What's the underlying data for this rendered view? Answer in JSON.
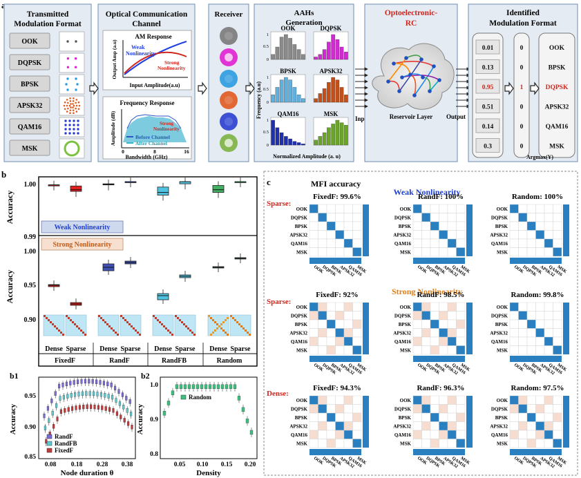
{
  "panel_a": {
    "label": "a",
    "tx": {
      "title1": "Transmitted",
      "title2": "Modulation Format",
      "formats": [
        "OOK",
        "DQPSK",
        "BPSK",
        "APSK32",
        "QAM16",
        "MSK"
      ]
    },
    "channel": {
      "title1": "Optical Communication",
      "title2": "Channel",
      "am_title": "AM Response",
      "am_ylabel": "Output Amp (a.u)",
      "am_xlabel": "Input Amplitude(a.u)",
      "weak1": "Weak",
      "weak2": "Nonlinearity",
      "strong1": "Strong",
      "strong2": "Nonlinearity",
      "fr_title": "Frequency Response",
      "fr_ylabel": "Amplitude (dB)",
      "fr_xlabel": "Bandwidth (GHz)",
      "fr_x0": "0",
      "fr_x1": "8",
      "fr_x2": "16",
      "before": "Before Channel",
      "after": "After Channel",
      "strong_fr1": "Strong",
      "strong_fr2": "Nonlinearity"
    },
    "receiver": {
      "title": "Receiver"
    },
    "aah": {
      "title1": "AAHs",
      "title2": "Generation",
      "ylabel": "Frequency (a.u)",
      "xlabel": "Normalized Amplitude (a. u)",
      "labels": [
        "OOK",
        "DQPSK",
        "BPSK",
        "APSK32",
        "QAM16",
        "MSK"
      ],
      "t1": "1",
      "t05": "0.5",
      "t0": "0",
      "input": "Input"
    },
    "rc": {
      "title1": "Optoelectronic-",
      "title2": "RC",
      "layer": "Reservoir Layer",
      "output": "Output"
    },
    "ident": {
      "title1": "Identified",
      "title2": "Modulation Format",
      "scores": [
        "0.01",
        "0.13",
        "0.95",
        "0.51",
        "0.14",
        "0.3"
      ],
      "argmax": [
        "0",
        "0",
        "1",
        "0",
        "0",
        "0"
      ],
      "formats": [
        "OOK",
        "BPSK",
        "DQPSK",
        "APSK32",
        "QAM16",
        "MSK"
      ],
      "argmax_label": "Argmax(Y)"
    }
  },
  "panel_b": {
    "label": "b",
    "ylabel": "Accuracy",
    "weak_label": "Weak Nonlinearity",
    "strong_label": "Strong Nonlinearity",
    "top_ticks": [
      "1.00",
      "0.99"
    ],
    "bottom_ticks": [
      "1.00",
      "0.95",
      "0.90"
    ],
    "sub_labels": [
      "Dense",
      "Sparse",
      "Dense",
      "Sparse",
      "Dense",
      "Sparse",
      "Dense",
      "Sparse"
    ],
    "groups": [
      "FixedF",
      "RandF",
      "RandFB",
      "Random"
    ]
  },
  "panel_b1": {
    "label": "b1",
    "ylabel": "Accuracy",
    "xlabel": "Node duration θ",
    "yticks": [
      "0.95",
      "0.90",
      "0.85"
    ],
    "xticks": [
      "0.08",
      "0.18",
      "0.28",
      "0.38"
    ],
    "legend": [
      "RandF",
      "RandFB",
      "FixedF"
    ]
  },
  "panel_b2": {
    "label": "b2",
    "ylabel": "Accuracy",
    "xlabel": "Density",
    "yticks": [
      "1.0",
      "0.9",
      "0.8"
    ],
    "xticks": [
      "0.05",
      "0.10",
      "0.15",
      "0.20"
    ],
    "legend": "Random"
  },
  "panel_c": {
    "label": "c",
    "title": "MFI accuracy",
    "weak": "Weak Nonlinearity",
    "strong": "Strong Nonlinearity",
    "sparse": "Sparse:",
    "dense": "Dense:",
    "row_labels": [
      "OOK",
      "DQPSK",
      "BPSK",
      "APSK32",
      "QAM16",
      "MSK"
    ],
    "matrices": [
      {
        "title": "FixedF: 99.6%"
      },
      {
        "title": "RandF: 100%"
      },
      {
        "title": "Random: 100%"
      },
      {
        "title": "FixedF: 92%"
      },
      {
        "title": "RandF: 98.5%"
      },
      {
        "title": "Random: 99.8%"
      },
      {
        "title": "FixedF: 94.3%"
      },
      {
        "title": "RandF: 96.3%"
      },
      {
        "title": "Random: 97.5%"
      }
    ]
  },
  "colors": {
    "blue": "#1f5fd6",
    "red": "#d0261c",
    "orange": "#d9801d",
    "cm": "#2a7fc0"
  },
  "chart_data": [
    {
      "type": "box",
      "title": "Weak Nonlinearity",
      "ylabel": "Accuracy",
      "ylim": [
        0.99,
        1.0
      ],
      "categories": [
        "FixedF Dense",
        "FixedF Sparse",
        "RandF Dense",
        "RandF Sparse",
        "RandFB Dense",
        "RandFB Sparse",
        "Random Dense",
        "Random Sparse"
      ],
      "series": [
        {
          "name": "median",
          "values": [
            0.9994,
            0.9985,
            0.9995,
            1.0,
            0.998,
            1.0,
            0.9985,
            1.0
          ]
        },
        {
          "name": "q1",
          "values": [
            0.9994,
            0.9982,
            0.9994,
            1.0,
            0.9975,
            0.9996,
            0.998,
            1.0
          ]
        },
        {
          "name": "q3",
          "values": [
            0.9994,
            0.9992,
            0.9996,
            1.0,
            0.999,
            1.0,
            0.9993,
            1.0
          ]
        }
      ]
    },
    {
      "type": "box",
      "title": "Strong Nonlinearity",
      "ylabel": "Accuracy",
      "ylim": [
        0.88,
        1.0
      ],
      "categories": [
        "FixedF Dense",
        "FixedF Sparse",
        "RandF Dense",
        "RandF Sparse",
        "RandFB Dense",
        "RandFB Sparse",
        "Random Dense",
        "Random Sparse"
      ],
      "series": [
        {
          "name": "median",
          "values": [
            0.949,
            0.922,
            0.975,
            0.982,
            0.934,
            0.962,
            0.975,
            0.988
          ]
        },
        {
          "name": "q1",
          "values": [
            0.947,
            0.92,
            0.97,
            0.98,
            0.928,
            0.96,
            0.974,
            0.987
          ]
        },
        {
          "name": "q3",
          "values": [
            0.95,
            0.924,
            0.98,
            0.984,
            0.937,
            0.964,
            0.976,
            0.989
          ]
        }
      ]
    },
    {
      "type": "box",
      "title": "b1",
      "xlabel": "Node duration θ",
      "ylabel": "Accuracy",
      "ylim": [
        0.84,
        1.0
      ],
      "x": [
        0.08,
        0.18,
        0.28,
        0.38
      ],
      "series": [
        {
          "name": "RandF"
        },
        {
          "name": "RandFB"
        },
        {
          "name": "FixedF"
        }
      ]
    },
    {
      "type": "box",
      "title": "b2",
      "xlabel": "Density",
      "ylabel": "Accuracy",
      "ylim": [
        0.8,
        1.0
      ],
      "x": [
        0.05,
        0.1,
        0.15,
        0.2
      ],
      "series": [
        {
          "name": "Random"
        }
      ]
    }
  ]
}
